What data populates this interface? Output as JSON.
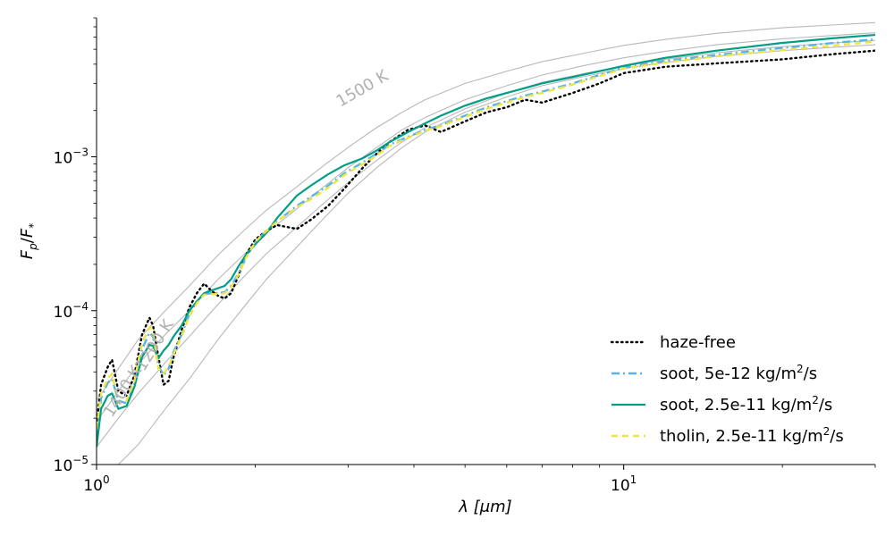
{
  "chart_data": {
    "type": "line",
    "xlabel": "λ [μm]",
    "ylabel": "Fp/F*",
    "x_scale": "log",
    "y_scale": "log",
    "xlim": [
      1.0,
      30.0
    ],
    "ylim": [
      1e-05,
      0.008
    ],
    "x_ticks": [
      {
        "value": 1,
        "base": "10",
        "exp": "0"
      },
      {
        "value": 10,
        "base": "10",
        "exp": "1"
      }
    ],
    "y_ticks": [
      {
        "value": 1e-05,
        "base": "10",
        "exp": "−5"
      },
      {
        "value": 0.0001,
        "base": "10",
        "exp": "−4"
      },
      {
        "value": 0.001,
        "base": "10",
        "exp": "−3"
      }
    ],
    "grid": false,
    "legend_position": "lower-right",
    "series": [
      {
        "name": "haze-free",
        "color": "#000000",
        "style": "dotted",
        "x": [
          1.0,
          1.02,
          1.05,
          1.07,
          1.1,
          1.14,
          1.18,
          1.22,
          1.26,
          1.28,
          1.31,
          1.34,
          1.37,
          1.4,
          1.45,
          1.5,
          1.55,
          1.6,
          1.65,
          1.7,
          1.75,
          1.8,
          1.86,
          1.92,
          2.0,
          2.1,
          2.2,
          2.4,
          2.55,
          2.75,
          2.95,
          3.2,
          3.4,
          3.6,
          3.9,
          4.2,
          4.5,
          5.0,
          5.5,
          6.0,
          6.5,
          7.0,
          8.0,
          9.0,
          10.0,
          12.0,
          15.0,
          20.0,
          25.0,
          30.0
        ],
        "y": [
          1.8e-05,
          3.3e-05,
          4.3e-05,
          4.8e-05,
          3e-05,
          2.8e-05,
          3.8e-05,
          7e-05,
          9e-05,
          8e-05,
          5e-05,
          3.3e-05,
          3.5e-05,
          5e-05,
          7.5e-05,
          0.000105,
          0.00013,
          0.00015,
          0.000135,
          0.000125,
          0.00012,
          0.00013,
          0.00017,
          0.00023,
          0.00029,
          0.00033,
          0.00036,
          0.00034,
          0.00039,
          0.00048,
          0.00062,
          0.00085,
          0.00105,
          0.00125,
          0.0015,
          0.0016,
          0.00145,
          0.0017,
          0.00195,
          0.0021,
          0.00235,
          0.00225,
          0.0026,
          0.003,
          0.0035,
          0.00385,
          0.00405,
          0.0043,
          0.00465,
          0.0049
        ]
      },
      {
        "name": "soot, 5e-12 kg/m²/s",
        "color": "#56b4e9",
        "style": "dashdot",
        "x": [
          1.0,
          1.02,
          1.05,
          1.07,
          1.1,
          1.14,
          1.18,
          1.22,
          1.26,
          1.28,
          1.31,
          1.34,
          1.37,
          1.4,
          1.45,
          1.5,
          1.55,
          1.6,
          1.65,
          1.7,
          1.75,
          1.8,
          1.86,
          1.92,
          2.0,
          2.1,
          2.2,
          2.4,
          2.55,
          2.75,
          2.95,
          3.2,
          3.4,
          3.6,
          3.9,
          4.2,
          4.5,
          5.0,
          5.5,
          6.0,
          6.5,
          7.0,
          8.0,
          9.0,
          10.0,
          12.0,
          15.0,
          20.0,
          25.0,
          30.0
        ],
        "y": [
          1.5e-05,
          2.7e-05,
          3.4e-05,
          3.6e-05,
          2.6e-05,
          2.5e-05,
          3.3e-05,
          5.6e-05,
          7.2e-05,
          6.8e-05,
          4.4e-05,
          3.8e-05,
          4.2e-05,
          5.4e-05,
          7e-05,
          9.5e-05,
          0.000115,
          0.000128,
          0.00013,
          0.00013,
          0.000132,
          0.000145,
          0.000175,
          0.00022,
          0.00028,
          0.00033,
          0.00038,
          0.00048,
          0.00055,
          0.00065,
          0.00078,
          0.00092,
          0.00105,
          0.0012,
          0.00135,
          0.0015,
          0.0016,
          0.00185,
          0.0021,
          0.0023,
          0.0025,
          0.00265,
          0.003,
          0.0034,
          0.0038,
          0.0042,
          0.0046,
          0.0051,
          0.0055,
          0.0058
        ]
      },
      {
        "name": "soot, 2.5e-11 kg/m²/s",
        "color": "#009e85",
        "style": "solid",
        "x": [
          1.0,
          1.02,
          1.05,
          1.07,
          1.1,
          1.14,
          1.18,
          1.22,
          1.26,
          1.28,
          1.31,
          1.34,
          1.37,
          1.4,
          1.45,
          1.5,
          1.55,
          1.6,
          1.65,
          1.7,
          1.75,
          1.8,
          1.86,
          1.92,
          2.0,
          2.1,
          2.2,
          2.4,
          2.55,
          2.75,
          2.95,
          3.2,
          3.4,
          3.6,
          3.9,
          4.2,
          4.5,
          5.0,
          5.5,
          6.0,
          6.5,
          7.0,
          8.0,
          9.0,
          10.0,
          12.0,
          15.0,
          20.0,
          25.0,
          30.0
        ],
        "y": [
          1.3e-05,
          2.3e-05,
          2.8e-05,
          2.9e-05,
          2.3e-05,
          2.4e-05,
          3.2e-05,
          5e-05,
          6e-05,
          5.9e-05,
          4.9e-05,
          5.5e-05,
          6e-05,
          6.8e-05,
          8e-05,
          0.0001,
          0.000115,
          0.00013,
          0.000135,
          0.00014,
          0.000145,
          0.00016,
          0.000195,
          0.00023,
          0.00027,
          0.00032,
          0.0004,
          0.00056,
          0.00065,
          0.00077,
          0.00088,
          0.00098,
          0.0011,
          0.00125,
          0.00145,
          0.00165,
          0.00185,
          0.00215,
          0.0024,
          0.0026,
          0.0028,
          0.003,
          0.0033,
          0.0036,
          0.0039,
          0.0044,
          0.0049,
          0.0055,
          0.0059,
          0.0062
        ]
      },
      {
        "name": "tholin, 2.5e-11 kg/m²/s",
        "color": "#f0e442",
        "style": "dashed",
        "x": [
          1.0,
          1.02,
          1.05,
          1.07,
          1.1,
          1.14,
          1.18,
          1.22,
          1.26,
          1.28,
          1.31,
          1.34,
          1.37,
          1.4,
          1.45,
          1.5,
          1.55,
          1.6,
          1.65,
          1.7,
          1.75,
          1.8,
          1.86,
          1.92,
          2.0,
          2.1,
          2.2,
          2.4,
          2.55,
          2.75,
          2.95,
          3.2,
          3.4,
          3.6,
          3.9,
          4.2,
          4.5,
          5.0,
          5.5,
          6.0,
          6.5,
          7.0,
          8.0,
          9.0,
          10.0,
          12.0,
          15.0,
          20.0,
          25.0,
          30.0
        ],
        "y": [
          1.7e-05,
          2.9e-05,
          3.6e-05,
          3.9e-05,
          2.5e-05,
          2.6e-05,
          3.5e-05,
          6.2e-05,
          7.8e-05,
          7.3e-05,
          4.2e-05,
          3.9e-05,
          4.3e-05,
          5.2e-05,
          6.8e-05,
          9.2e-05,
          0.000112,
          0.000127,
          0.000128,
          0.000128,
          0.00013,
          0.000142,
          0.000172,
          0.00022,
          0.00028,
          0.00033,
          0.00038,
          0.00047,
          0.00053,
          0.00063,
          0.00076,
          0.0009,
          0.00102,
          0.00118,
          0.00133,
          0.00148,
          0.00158,
          0.00182,
          0.00205,
          0.00225,
          0.00245,
          0.0026,
          0.00295,
          0.00335,
          0.00375,
          0.0041,
          0.0045,
          0.00495,
          0.0053,
          0.0056
        ]
      }
    ],
    "reference_curves": {
      "color": "#b8b8b8",
      "curves": [
        {
          "x": [
            1.1,
            1.2,
            1.35,
            1.5,
            1.7,
            1.9,
            2.1,
            2.4,
            2.7,
            3.0,
            3.4,
            3.8,
            4.2,
            5.0,
            6.0,
            7.0,
            8.5,
            10.0,
            12.0,
            15.0,
            20.0,
            25.0,
            30.0
          ],
          "y": [
            1e-05,
            1.35e-05,
            2.3e-05,
            3.6e-05,
            6.5e-05,
            0.000105,
            0.00016,
            0.00026,
            0.0004,
            0.00058,
            0.00085,
            0.00115,
            0.00145,
            0.00195,
            0.00245,
            0.0029,
            0.00335,
            0.00375,
            0.0041,
            0.0045,
            0.0049,
            0.00515,
            0.00535
          ]
        },
        {
          "x": [
            1.0,
            1.1,
            1.2,
            1.35,
            1.5,
            1.7,
            1.9,
            2.1,
            2.4,
            2.7,
            3.0,
            3.4,
            3.8,
            4.2,
            5.0,
            6.0,
            7.0,
            8.5,
            10.0,
            12.0,
            15.0,
            20.0,
            25.0,
            30.0
          ],
          "y": [
            1.3e-05,
            2e-05,
            2.9e-05,
            4.6e-05,
            6.8e-05,
            0.00011,
            0.000165,
            0.000235,
            0.00035,
            0.0005,
            0.00068,
            0.00095,
            0.00125,
            0.00155,
            0.00205,
            0.0026,
            0.00305,
            0.0035,
            0.0039,
            0.0043,
            0.00475,
            0.0052,
            0.0055,
            0.0057
          ]
        },
        {
          "x": [
            1.0,
            1.1,
            1.2,
            1.35,
            1.5,
            1.7,
            1.9,
            2.1,
            2.4,
            2.7,
            3.0,
            3.4,
            3.8,
            4.2,
            5.0,
            6.0,
            7.0,
            8.5,
            10.0,
            12.0,
            15.0,
            20.0,
            25.0,
            30.0
          ],
          "y": [
            1.9e-05,
            3e-05,
            4.5e-05,
            7e-05,
            0.0001,
            0.00016,
            0.00023,
            0.00032,
            0.00046,
            0.00064,
            0.00085,
            0.00115,
            0.0015,
            0.0018,
            0.00235,
            0.0029,
            0.0034,
            0.00395,
            0.0044,
            0.00485,
            0.00535,
            0.00585,
            0.00615,
            0.0064
          ]
        },
        {
          "x": [
            1.0,
            1.1,
            1.2,
            1.35,
            1.5,
            1.7,
            1.9,
            2.1,
            2.4,
            2.7,
            3.0,
            3.4,
            3.8,
            4.2,
            5.0,
            6.0,
            7.0,
            8.5,
            10.0,
            12.0,
            15.0,
            20.0,
            25.0,
            30.0
          ],
          "y": [
            2.6e-05,
            4.2e-05,
            6.5e-05,
            0.0001,
            0.000145,
            0.00023,
            0.00033,
            0.00045,
            0.00064,
            0.00088,
            0.00115,
            0.00155,
            0.00195,
            0.00235,
            0.003,
            0.0036,
            0.00415,
            0.00475,
            0.0053,
            0.0058,
            0.00635,
            0.0069,
            0.0072,
            0.00745
          ]
        }
      ]
    },
    "annotations": [
      {
        "text": "1500 K",
        "x": 2.9,
        "y": 0.0021,
        "angle": -30
      },
      {
        "text": "1400 K",
        "x": 1.07,
        "y": 2e-05,
        "angle": -58
      },
      {
        "text": "1200 K",
        "x": 1.23,
        "y": 4e-05,
        "angle": -58
      }
    ]
  }
}
